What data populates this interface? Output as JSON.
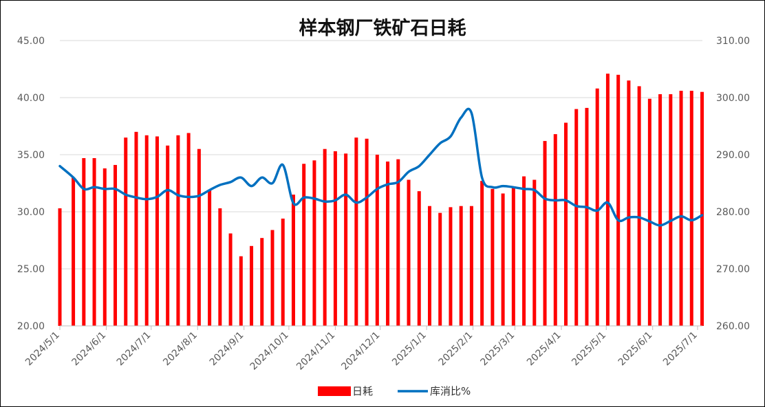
{
  "chart_data": {
    "type": "bar",
    "title": "样本钢厂铁矿石日耗",
    "xlabel": "",
    "ylabel": "",
    "y_left": {
      "lim": [
        20,
        45
      ],
      "ticks": [
        "20.00",
        "25.00",
        "30.00",
        "35.00",
        "40.00",
        "45.00"
      ]
    },
    "y_right": {
      "lim": [
        260,
        310
      ],
      "ticks": [
        "260.00",
        "270.00",
        "280.00",
        "290.00",
        "300.00",
        "310.00"
      ]
    },
    "x_ticks": [
      "2024/5/1",
      "2024/6/1",
      "2024/7/1",
      "2024/8/1",
      "2024/9/1",
      "2024/10/1",
      "2024/11/1",
      "2024/12/1",
      "2025/1/1",
      "2025/2/1",
      "2025/3/1",
      "2025/4/1",
      "2025/5/1",
      "2025/6/1",
      "2025/7/1"
    ],
    "grid": true,
    "legend_position": "bottom",
    "series": [
      {
        "name": "日耗",
        "type": "bar",
        "axis": "left",
        "color": "#ff0000",
        "points": [
          [
            "2024/5/1",
            30.3
          ],
          [
            "2024/5/10",
            33.0
          ],
          [
            "2024/5/17",
            34.7
          ],
          [
            "2024/5/24",
            34.7
          ],
          [
            "2024/5/31",
            33.8
          ],
          [
            "2024/6/7",
            34.1
          ],
          [
            "2024/6/14",
            36.5
          ],
          [
            "2024/6/21",
            37.0
          ],
          [
            "2024/6/28",
            36.7
          ],
          [
            "2024/7/5",
            36.6
          ],
          [
            "2024/7/12",
            35.8
          ],
          [
            "2024/7/19",
            36.7
          ],
          [
            "2024/7/26",
            36.9
          ],
          [
            "2024/8/2",
            35.5
          ],
          [
            "2024/8/9",
            31.9
          ],
          [
            "2024/8/16",
            30.3
          ],
          [
            "2024/8/23",
            28.1
          ],
          [
            "2024/8/30",
            26.1
          ],
          [
            "2024/9/6",
            27.0
          ],
          [
            "2024/9/13",
            27.7
          ],
          [
            "2024/9/20",
            28.4
          ],
          [
            "2024/9/27",
            29.4
          ],
          [
            "2024/10/4",
            31.5
          ],
          [
            "2024/10/11",
            34.2
          ],
          [
            "2024/10/18",
            34.5
          ],
          [
            "2024/10/25",
            35.5
          ],
          [
            "2024/11/1",
            35.3
          ],
          [
            "2024/11/8",
            35.1
          ],
          [
            "2024/11/15",
            36.5
          ],
          [
            "2024/11/22",
            36.4
          ],
          [
            "2024/11/29",
            35.0
          ],
          [
            "2024/12/6",
            34.4
          ],
          [
            "2024/12/13",
            34.6
          ],
          [
            "2024/12/20",
            32.8
          ],
          [
            "2024/12/27",
            31.8
          ],
          [
            "2025/1/3",
            30.5
          ],
          [
            "2025/1/10",
            29.9
          ],
          [
            "2025/1/17",
            30.4
          ],
          [
            "2025/1/24",
            30.5
          ],
          [
            "2025/1/31",
            30.5
          ],
          [
            "2025/2/7",
            32.7
          ],
          [
            "2025/2/14",
            32.0
          ],
          [
            "2025/2/21",
            31.6
          ],
          [
            "2025/2/28",
            32.1
          ],
          [
            "2025/3/7",
            33.1
          ],
          [
            "2025/3/14",
            32.8
          ],
          [
            "2025/3/21",
            36.2
          ],
          [
            "2025/3/28",
            36.8
          ],
          [
            "2025/4/4",
            37.8
          ],
          [
            "2025/4/11",
            39.0
          ],
          [
            "2025/4/18",
            39.1
          ],
          [
            "2025/4/25",
            40.8
          ],
          [
            "2025/5/2",
            42.1
          ],
          [
            "2025/5/9",
            42.0
          ],
          [
            "2025/5/16",
            41.5
          ],
          [
            "2025/5/23",
            41.0
          ],
          [
            "2025/5/30",
            39.9
          ],
          [
            "2025/6/6",
            40.3
          ],
          [
            "2025/6/13",
            40.3
          ],
          [
            "2025/6/20",
            40.6
          ],
          [
            "2025/6/27",
            40.6
          ],
          [
            "2025/7/4",
            40.5
          ]
        ]
      },
      {
        "name": "库消比%",
        "type": "line",
        "axis": "right",
        "color": "#0070c0",
        "points": [
          [
            "2024/5/1",
            288.0
          ],
          [
            "2024/5/10",
            286.0
          ],
          [
            "2024/5/17",
            284.0
          ],
          [
            "2024/5/24",
            284.3
          ],
          [
            "2024/5/31",
            284.0
          ],
          [
            "2024/6/7",
            284.0
          ],
          [
            "2024/6/14",
            283.0
          ],
          [
            "2024/6/21",
            282.5
          ],
          [
            "2024/6/28",
            282.2
          ],
          [
            "2024/7/5",
            282.6
          ],
          [
            "2024/7/12",
            283.8
          ],
          [
            "2024/7/19",
            282.9
          ],
          [
            "2024/7/26",
            282.6
          ],
          [
            "2024/8/2",
            282.8
          ],
          [
            "2024/8/9",
            283.8
          ],
          [
            "2024/8/16",
            284.7
          ],
          [
            "2024/8/23",
            285.2
          ],
          [
            "2024/8/30",
            286.0
          ],
          [
            "2024/9/6",
            284.5
          ],
          [
            "2024/9/13",
            286.0
          ],
          [
            "2024/9/20",
            285.0
          ],
          [
            "2024/9/27",
            288.2
          ],
          [
            "2024/10/4",
            281.5
          ],
          [
            "2024/10/11",
            282.5
          ],
          [
            "2024/10/18",
            282.3
          ],
          [
            "2024/10/25",
            281.8
          ],
          [
            "2024/11/1",
            282.0
          ],
          [
            "2024/11/8",
            283.0
          ],
          [
            "2024/11/15",
            281.6
          ],
          [
            "2024/11/22",
            282.5
          ],
          [
            "2024/11/29",
            284.0
          ],
          [
            "2024/12/6",
            284.8
          ],
          [
            "2024/12/13",
            285.2
          ],
          [
            "2024/12/20",
            287.0
          ],
          [
            "2024/12/27",
            288.0
          ],
          [
            "2025/1/3",
            290.0
          ],
          [
            "2025/1/10",
            292.0
          ],
          [
            "2025/1/17",
            293.2
          ],
          [
            "2025/1/24",
            296.5
          ],
          [
            "2025/1/31",
            297.3
          ],
          [
            "2025/2/7",
            286.0
          ],
          [
            "2025/2/14",
            284.3
          ],
          [
            "2025/2/21",
            284.5
          ],
          [
            "2025/2/28",
            284.3
          ],
          [
            "2025/3/7",
            284.0
          ],
          [
            "2025/3/14",
            283.8
          ],
          [
            "2025/3/21",
            282.3
          ],
          [
            "2025/3/28",
            282.0
          ],
          [
            "2025/4/4",
            282.0
          ],
          [
            "2025/4/11",
            281.0
          ],
          [
            "2025/4/18",
            280.8
          ],
          [
            "2025/4/25",
            280.2
          ],
          [
            "2025/5/2",
            281.6
          ],
          [
            "2025/5/9",
            278.5
          ],
          [
            "2025/5/16",
            279.0
          ],
          [
            "2025/5/23",
            279.0
          ],
          [
            "2025/5/30",
            278.3
          ],
          [
            "2025/6/6",
            277.6
          ],
          [
            "2025/6/13",
            278.4
          ],
          [
            "2025/6/20",
            279.2
          ],
          [
            "2025/6/27",
            278.5
          ],
          [
            "2025/7/4",
            279.4
          ]
        ]
      }
    ]
  }
}
